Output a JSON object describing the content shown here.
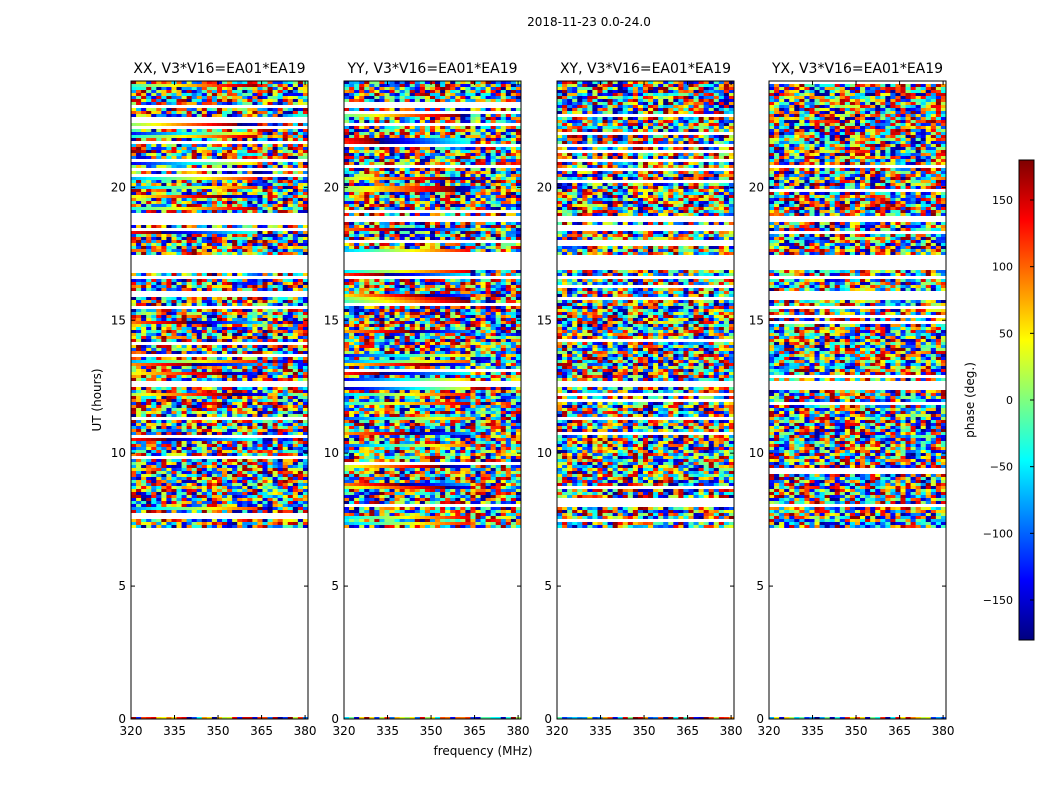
{
  "suptitle": "2018-11-23 0.0-24.0",
  "xlabel": "frequency (MHz)",
  "ylabel": "UT (hours)",
  "colorbar": {
    "label": "phase (deg.)",
    "range": [
      -180,
      180
    ],
    "ticks": [
      150,
      100,
      50,
      0,
      -50,
      -100,
      -150
    ],
    "tick_labels": [
      "150",
      "100",
      "50",
      "0",
      "−50",
      "−100",
      "−150"
    ],
    "colormap": [
      "#00007f",
      "#0000ff",
      "#007fff",
      "#00ffff",
      "#7fff7f",
      "#ffff00",
      "#ff7f00",
      "#ff0000",
      "#7f0000"
    ]
  },
  "chart_data": [
    {
      "type": "heatmap",
      "title": "XX, V3*V16=EA01*EA19",
      "xlim": [
        320,
        381
      ],
      "ylim": [
        0,
        24
      ],
      "xticks": [
        320,
        335,
        350,
        365,
        380
      ],
      "yticks": [
        0,
        5,
        10,
        15,
        20
      ],
      "z": "phase (deg.)",
      "data_start_ut": 7.2,
      "flagged_ut": [
        [
          17.0,
          17.5
        ],
        [
          16.6,
          16.7
        ],
        [
          13.4,
          13.5
        ],
        [
          12.6,
          12.8
        ],
        [
          18.7,
          19.0
        ]
      ]
    },
    {
      "type": "heatmap",
      "title": "YY, V3*V16=EA01*EA19",
      "xlim": [
        320,
        381
      ],
      "ylim": [
        0,
        24
      ],
      "xticks": [
        320,
        335,
        350,
        365,
        380
      ],
      "yticks": [
        0,
        5,
        10,
        15,
        20
      ],
      "z": "phase (deg.)",
      "data_start_ut": 7.2,
      "flagged_ut": [
        [
          17.0,
          17.5
        ],
        [
          16.6,
          16.7
        ],
        [
          13.4,
          13.5
        ],
        [
          12.6,
          12.8
        ],
        [
          18.7,
          19.0
        ]
      ]
    },
    {
      "type": "heatmap",
      "title": "XY, V3*V16=EA01*EA19",
      "xlim": [
        320,
        381
      ],
      "ylim": [
        0,
        24
      ],
      "xticks": [
        320,
        335,
        350,
        365,
        380
      ],
      "yticks": [
        0,
        5,
        10,
        15,
        20
      ],
      "z": "phase (deg.)",
      "data_start_ut": 7.2,
      "flagged_ut": [
        [
          17.0,
          17.5
        ],
        [
          16.6,
          16.7
        ],
        [
          13.4,
          13.5
        ],
        [
          12.6,
          12.8
        ],
        [
          18.7,
          19.0
        ]
      ]
    },
    {
      "type": "heatmap",
      "title": "YX, V3*V16=EA01*EA19",
      "xlim": [
        320,
        381
      ],
      "ylim": [
        0,
        24
      ],
      "xticks": [
        320,
        335,
        350,
        365,
        380
      ],
      "yticks": [
        0,
        5,
        10,
        15,
        20
      ],
      "z": "phase (deg.)",
      "data_start_ut": 7.2,
      "flagged_ut": [
        [
          17.0,
          17.5
        ],
        [
          16.6,
          16.7
        ],
        [
          13.4,
          13.5
        ],
        [
          12.6,
          12.8
        ],
        [
          18.7,
          19.0
        ]
      ]
    }
  ]
}
